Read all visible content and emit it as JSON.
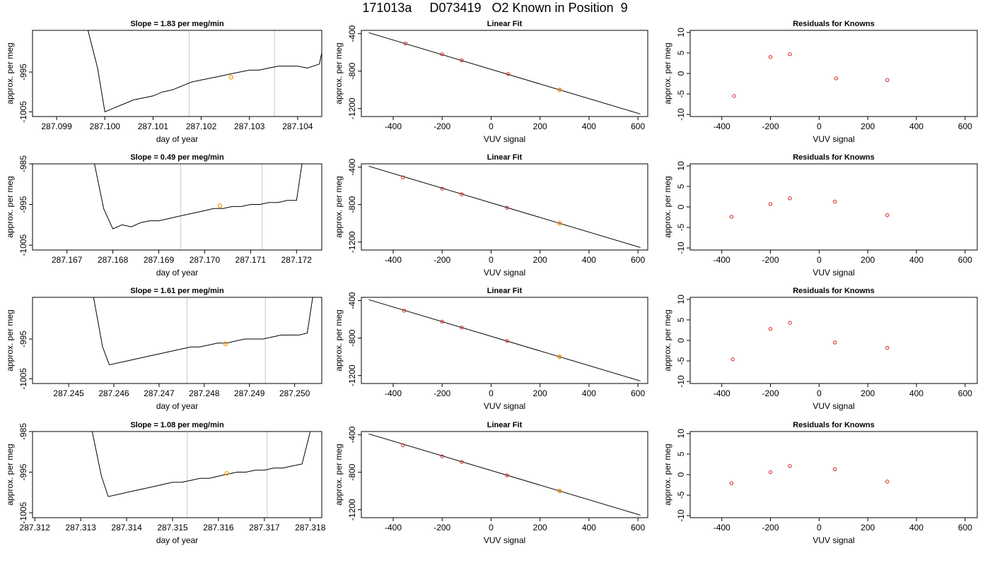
{
  "figure": {
    "title": "171013a     D073419   O2 Known in Position  9"
  },
  "chart_data": [
    {
      "type": "line",
      "title": "Slope =  1.83  per meg/min",
      "xlabel": "day of year",
      "ylabel": "approx. per meg",
      "xticks": [
        "287.099",
        "287.100",
        "287.101",
        "287.102",
        "287.103",
        "287.104"
      ],
      "yticks": [
        "-1005",
        "-995"
      ],
      "xlim": [
        287.0985,
        287.1045
      ],
      "ylim": [
        -1006.2,
        -984.5
      ],
      "vlines": [
        287.10175,
        287.10352
      ],
      "marker": {
        "x": 287.10262,
        "y": -996.3,
        "color": "#f5a623"
      },
      "series": [
        {
          "x": [
            287.09965,
            287.09985,
            287.1,
            287.1002,
            287.1004,
            287.1006,
            287.1008,
            287.101,
            287.1012,
            287.1014,
            287.1016,
            287.1018,
            287.102,
            287.1022,
            287.1024,
            287.1026,
            287.1028,
            287.103,
            287.1032,
            287.1034,
            287.1036,
            287.1038,
            287.104,
            287.1042,
            287.10445,
            287.1046
          ],
          "y": [
            -984.5,
            -994,
            -1005,
            -1004,
            -1003,
            -1002,
            -1001.5,
            -1001,
            -1000,
            -999.5,
            -998.5,
            -997.5,
            -997,
            -996.5,
            -996,
            -995.5,
            -995,
            -994.5,
            -994.5,
            -994,
            -993.5,
            -993.5,
            -993.5,
            -994,
            -993,
            -984.5
          ]
        }
      ]
    },
    {
      "type": "scatter",
      "title": "Linear Fit",
      "xlabel": "VUV signal",
      "ylabel": "approx. per meg",
      "xticks": [
        "-400",
        "-200",
        "0",
        "200",
        "400",
        "600"
      ],
      "yticks": [
        "-400",
        "-800",
        "-1200"
      ],
      "xlim": [
        -530,
        640
      ],
      "ylim": [
        -1285,
        -365
      ],
      "fit_line": {
        "x": [
          -500,
          610
        ],
        "y": [
          -390,
          -1258
        ]
      },
      "points": {
        "x": [
          -350,
          -200,
          -120,
          70,
          280
        ],
        "y": [
          -505,
          -620,
          -685,
          -830,
          -1000
        ]
      },
      "highlight": {
        "x": 280,
        "y": -1000,
        "color": "#f5a623"
      }
    },
    {
      "type": "scatter",
      "title": "Residuals for Knowns",
      "xlabel": "VUV signal",
      "ylabel": "approx. per meg",
      "xticks": [
        "-400",
        "-200",
        "0",
        "200",
        "400",
        "600"
      ],
      "yticks": [
        "-10",
        "-5",
        "0",
        "5",
        "10"
      ],
      "xlim": [
        -530,
        650
      ],
      "ylim": [
        -10.5,
        10.5
      ],
      "points": {
        "x": [
          -350,
          -200,
          -120,
          70,
          280
        ],
        "y": [
          -5.5,
          4,
          4.7,
          -1.2,
          -1.6
        ]
      }
    },
    {
      "type": "line",
      "title": "Slope =  0.49  per meg/min",
      "xlabel": "day of year",
      "ylabel": "approx. per meg",
      "xticks": [
        "287.167",
        "287.168",
        "287.169",
        "287.170",
        "287.171",
        "287.172"
      ],
      "yticks": [
        "-1005",
        "-995",
        "-985"
      ],
      "xlim": [
        287.16625,
        287.17255
      ],
      "ylim": [
        -1006.2,
        -985
      ],
      "vlines": [
        287.16948,
        287.17125
      ],
      "marker": {
        "x": 287.17033,
        "y": -995.3,
        "color": "#f5a623"
      },
      "series": [
        {
          "x": [
            287.1676,
            287.1678,
            287.168,
            287.1682,
            287.1684,
            287.1686,
            287.1688,
            287.169,
            287.1692,
            287.1694,
            287.1696,
            287.1698,
            287.17,
            287.1702,
            287.1704,
            287.1706,
            287.1708,
            287.171,
            287.1712,
            287.1714,
            287.1716,
            287.1718,
            287.172,
            287.17212
          ],
          "y": [
            -985,
            -996,
            -1001,
            -1000,
            -1000.5,
            -999.5,
            -999,
            -999,
            -998.5,
            -998,
            -997.5,
            -997,
            -996.5,
            -996,
            -996,
            -995.5,
            -995.5,
            -995,
            -995,
            -994.5,
            -994.5,
            -994,
            -994,
            -985
          ]
        }
      ]
    },
    {
      "type": "scatter",
      "title": "Linear Fit",
      "xlabel": "VUV signal",
      "ylabel": "approx. per meg",
      "xticks": [
        "-400",
        "-200",
        "0",
        "200",
        "400",
        "600"
      ],
      "yticks": [
        "-400",
        "-800",
        "-1200"
      ],
      "xlim": [
        -530,
        640
      ],
      "ylim": [
        -1285,
        -365
      ],
      "fit_line": {
        "x": [
          -500,
          610
        ],
        "y": [
          -390,
          -1258
        ]
      },
      "points": {
        "x": [
          -360,
          -200,
          -120,
          65,
          280
        ],
        "y": [
          -510,
          -630,
          -690,
          -833,
          -1000
        ]
      },
      "highlight": {
        "x": 280,
        "y": -1000,
        "color": "#f5a623"
      }
    },
    {
      "type": "scatter",
      "title": "Residuals for Knowns",
      "xlabel": "VUV signal",
      "ylabel": "approx. per meg",
      "xticks": [
        "-400",
        "-200",
        "0",
        "200",
        "400",
        "600"
      ],
      "yticks": [
        "-10",
        "-5",
        "0",
        "5",
        "10"
      ],
      "xlim": [
        -530,
        650
      ],
      "ylim": [
        -10.5,
        10.5
      ],
      "points": {
        "x": [
          -360,
          -200,
          -120,
          65,
          280
        ],
        "y": [
          -2.4,
          0.7,
          2.1,
          1.3,
          -2
        ]
      }
    },
    {
      "type": "line",
      "title": "Slope =  1.61  per meg/min",
      "xlabel": "day of year",
      "ylabel": "approx. per meg",
      "xticks": [
        "287.245",
        "287.246",
        "287.247",
        "287.248",
        "287.249",
        "287.250"
      ],
      "yticks": [
        "-1005",
        "-995"
      ],
      "xlim": [
        287.2442,
        287.2506
      ],
      "ylim": [
        -1006.2,
        -984.5
      ],
      "vlines": [
        287.24762,
        287.24935
      ],
      "marker": {
        "x": 287.24847,
        "y": -996.2,
        "color": "#f5a623"
      },
      "series": [
        {
          "x": [
            287.24555,
            287.24575,
            287.2459,
            287.2461,
            287.2463,
            287.2465,
            287.2467,
            287.2469,
            287.2471,
            287.2473,
            287.2475,
            287.2477,
            287.2479,
            287.2481,
            287.2483,
            287.2485,
            287.2487,
            287.2489,
            287.2491,
            287.2493,
            287.2495,
            287.2497,
            287.2499,
            287.2501,
            287.25028,
            287.2504
          ],
          "y": [
            -984.5,
            -997,
            -1001.5,
            -1001,
            -1000.5,
            -1000,
            -999.5,
            -999,
            -998.5,
            -998,
            -997.5,
            -997,
            -997,
            -996.5,
            -996,
            -996,
            -995.5,
            -995,
            -995,
            -995,
            -994.5,
            -994,
            -994,
            -994,
            -993.5,
            -984.5
          ]
        }
      ]
    },
    {
      "type": "scatter",
      "title": "Linear Fit",
      "xlabel": "VUV signal",
      "ylabel": "approx. per meg",
      "xticks": [
        "-400",
        "-200",
        "0",
        "200",
        "400",
        "600"
      ],
      "yticks": [
        "-400",
        "-800",
        "-1200"
      ],
      "xlim": [
        -530,
        640
      ],
      "ylim": [
        -1285,
        -365
      ],
      "fit_line": {
        "x": [
          -500,
          610
        ],
        "y": [
          -390,
          -1258
        ]
      },
      "points": {
        "x": [
          -355,
          -200,
          -120,
          65,
          280
        ],
        "y": [
          -507,
          -625,
          -688,
          -830,
          -1000
        ]
      },
      "highlight": {
        "x": 280,
        "y": -1000,
        "color": "#f5a623"
      }
    },
    {
      "type": "scatter",
      "title": "Residuals for Knowns",
      "xlabel": "VUV signal",
      "ylabel": "approx. per meg",
      "xticks": [
        "-400",
        "-200",
        "0",
        "200",
        "400",
        "600"
      ],
      "yticks": [
        "-10",
        "-5",
        "0",
        "5",
        "10"
      ],
      "xlim": [
        -530,
        650
      ],
      "ylim": [
        -10.5,
        10.5
      ],
      "points": {
        "x": [
          -355,
          -200,
          -120,
          65,
          280
        ],
        "y": [
          -4.6,
          2.8,
          4.3,
          -0.5,
          -1.8
        ]
      }
    },
    {
      "type": "line",
      "title": "Slope =  1.08  per meg/min",
      "xlabel": "day of year",
      "ylabel": "approx. per meg",
      "xticks": [
        "287.312",
        "287.313",
        "287.314",
        "287.315",
        "287.316",
        "287.317",
        "287.318"
      ],
      "yticks": [
        "-1005",
        "-995",
        "-985"
      ],
      "xlim": [
        287.31195,
        287.31825
      ],
      "ylim": [
        -1006.2,
        -985
      ],
      "vlines": [
        287.31532,
        287.31706
      ],
      "marker": {
        "x": 287.31618,
        "y": -995.3,
        "color": "#f5a623"
      },
      "series": [
        {
          "x": [
            287.31325,
            287.31345,
            287.3136,
            287.3138,
            287.314,
            287.3142,
            287.3144,
            287.3146,
            287.3148,
            287.315,
            287.3152,
            287.3154,
            287.3156,
            287.3158,
            287.316,
            287.3162,
            287.3164,
            287.3166,
            287.3168,
            287.317,
            287.3172,
            287.3174,
            287.3176,
            287.31782,
            287.318
          ],
          "y": [
            -985,
            -996,
            -1001,
            -1000.5,
            -1000,
            -999.5,
            -999,
            -998.5,
            -998,
            -997.5,
            -997.5,
            -997,
            -996.5,
            -996.5,
            -996,
            -995.5,
            -995,
            -995,
            -994.5,
            -994.5,
            -994,
            -994,
            -993.5,
            -993,
            -985
          ]
        }
      ]
    },
    {
      "type": "scatter",
      "title": "Linear Fit",
      "xlabel": "VUV signal",
      "ylabel": "approx. per meg",
      "xticks": [
        "-400",
        "-200",
        "0",
        "200",
        "400",
        "600"
      ],
      "yticks": [
        "-400",
        "-800",
        "-1200"
      ],
      "xlim": [
        -530,
        640
      ],
      "ylim": [
        -1285,
        -365
      ],
      "fit_line": {
        "x": [
          -500,
          610
        ],
        "y": [
          -390,
          -1258
        ]
      },
      "points": {
        "x": [
          -360,
          -200,
          -120,
          65,
          280
        ],
        "y": [
          -512,
          -630,
          -690,
          -833,
          -1000
        ]
      },
      "highlight": {
        "x": 280,
        "y": -1000,
        "color": "#f5a623"
      }
    },
    {
      "type": "scatter",
      "title": "Residuals for Knowns",
      "xlabel": "VUV signal",
      "ylabel": "approx. per meg",
      "xticks": [
        "-400",
        "-200",
        "0",
        "200",
        "400",
        "600"
      ],
      "yticks": [
        "-10",
        "-5",
        "0",
        "5",
        "10"
      ],
      "xlim": [
        -530,
        650
      ],
      "ylim": [
        -10.5,
        10.5
      ],
      "points": {
        "x": [
          -360,
          -200,
          -120,
          65,
          280
        ],
        "y": [
          -2.1,
          0.6,
          2.1,
          1.3,
          -1.7
        ]
      }
    }
  ]
}
